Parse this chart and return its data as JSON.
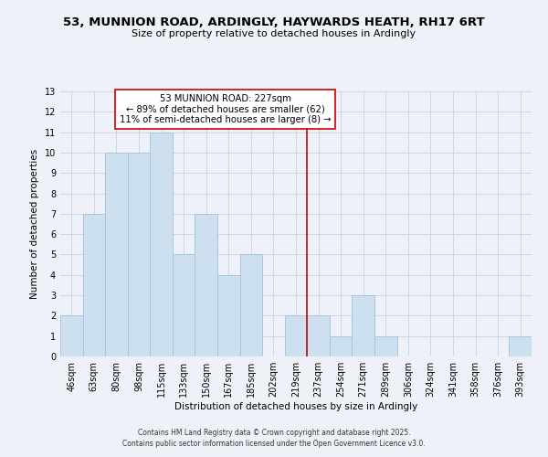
{
  "title": "53, MUNNION ROAD, ARDINGLY, HAYWARDS HEATH, RH17 6RT",
  "subtitle": "Size of property relative to detached houses in Ardingly",
  "xlabel": "Distribution of detached houses by size in Ardingly",
  "ylabel": "Number of detached properties",
  "bar_labels": [
    "46sqm",
    "63sqm",
    "80sqm",
    "98sqm",
    "115sqm",
    "133sqm",
    "150sqm",
    "167sqm",
    "185sqm",
    "202sqm",
    "219sqm",
    "237sqm",
    "254sqm",
    "271sqm",
    "289sqm",
    "306sqm",
    "324sqm",
    "341sqm",
    "358sqm",
    "376sqm",
    "393sqm"
  ],
  "bar_values": [
    2,
    7,
    10,
    10,
    11,
    5,
    7,
    4,
    5,
    0,
    2,
    2,
    1,
    3,
    1,
    0,
    0,
    0,
    0,
    0,
    1
  ],
  "bar_color": "#cce0f0",
  "bar_edge_color": "#aac4dc",
  "ylim": [
    0,
    13
  ],
  "yticks": [
    0,
    1,
    2,
    3,
    4,
    5,
    6,
    7,
    8,
    9,
    10,
    11,
    12,
    13
  ],
  "vline_x_index": 10.5,
  "vline_color": "#cc0000",
  "annotation_title": "53 MUNNION ROAD: 227sqm",
  "annotation_line1": "← 89% of detached houses are smaller (62)",
  "annotation_line2": "11% of semi-detached houses are larger (8) →",
  "footer_line1": "Contains HM Land Registry data © Crown copyright and database right 2025.",
  "footer_line2": "Contains public sector information licensed under the Open Government Licence v3.0.",
  "grid_color": "#c8d8e8",
  "bg_color": "#eef2f8",
  "title_fontsize": 9.5,
  "subtitle_fontsize": 8,
  "axis_fontsize": 7.5,
  "tick_fontsize": 7
}
